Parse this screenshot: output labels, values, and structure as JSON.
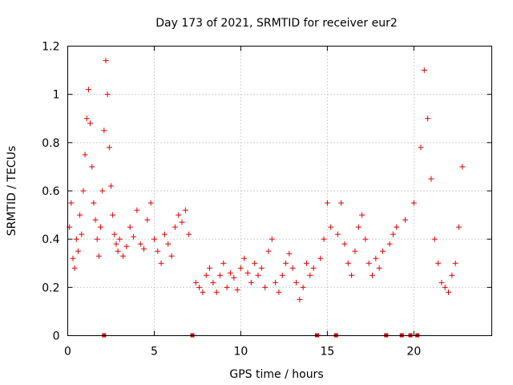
{
  "chart_data": {
    "type": "scatter",
    "title": "Day 173 of 2021, SRMTID for receiver eur2",
    "xlabel": "GPS time / hours",
    "ylabel": "SRMTID / TECUs",
    "xlim": [
      0,
      24.5
    ],
    "ylim": [
      0,
      1.2
    ],
    "x_ticks": [
      0,
      5,
      10,
      15,
      20
    ],
    "x_tick_labels": [
      "0",
      "5",
      "10",
      "15",
      "20"
    ],
    "y_ticks": [
      0,
      0.2,
      0.4,
      0.6,
      0.8,
      1.0,
      1.2
    ],
    "y_tick_labels": [
      "0",
      "0.2",
      "0.4",
      "0.6",
      "0.8",
      "1",
      "1.2"
    ],
    "grid": true,
    "marker": "plus",
    "color": "#e00000",
    "data_gap_markers_x": [
      2.1,
      7.2,
      14.4,
      15.5,
      18.4,
      19.3,
      19.8,
      20.2
    ],
    "series": [
      {
        "name": "SRMTID",
        "x": [
          0.1,
          0.2,
          0.3,
          0.4,
          0.5,
          0.6,
          0.7,
          0.8,
          0.9,
          1.0,
          1.1,
          1.2,
          1.3,
          1.4,
          1.5,
          1.6,
          1.7,
          1.8,
          1.9,
          2.0,
          2.1,
          2.2,
          2.3,
          2.4,
          2.5,
          2.6,
          2.7,
          2.8,
          2.9,
          3.0,
          3.2,
          3.4,
          3.6,
          3.8,
          4.0,
          4.2,
          4.4,
          4.6,
          4.8,
          5.0,
          5.2,
          5.4,
          5.6,
          5.8,
          6.0,
          6.2,
          6.4,
          6.6,
          6.8,
          7.0,
          7.4,
          7.6,
          7.8,
          8.0,
          8.2,
          8.4,
          8.6,
          8.8,
          9.0,
          9.2,
          9.4,
          9.6,
          9.8,
          10.0,
          10.2,
          10.4,
          10.6,
          10.8,
          11.0,
          11.2,
          11.4,
          11.6,
          11.8,
          12.0,
          12.2,
          12.4,
          12.6,
          12.8,
          13.0,
          13.2,
          13.4,
          13.6,
          13.8,
          14.0,
          14.2,
          14.6,
          14.8,
          15.0,
          15.2,
          15.6,
          15.8,
          16.0,
          16.2,
          16.4,
          16.6,
          16.8,
          17.0,
          17.2,
          17.4,
          17.6,
          17.8,
          18.0,
          18.2,
          18.6,
          18.8,
          19.0,
          19.5,
          20.0,
          20.4,
          20.6,
          20.8,
          21.0,
          21.2,
          21.4,
          21.6,
          21.8,
          22.0,
          22.2,
          22.4,
          22.6,
          22.8
        ],
        "y": [
          0.45,
          0.55,
          0.32,
          0.28,
          0.4,
          0.35,
          0.5,
          0.42,
          0.6,
          0.75,
          0.9,
          1.02,
          0.88,
          0.7,
          0.55,
          0.48,
          0.4,
          0.33,
          0.45,
          0.6,
          0.85,
          1.14,
          1.0,
          0.78,
          0.62,
          0.5,
          0.42,
          0.38,
          0.35,
          0.4,
          0.33,
          0.37,
          0.45,
          0.41,
          0.52,
          0.38,
          0.36,
          0.48,
          0.55,
          0.4,
          0.35,
          0.3,
          0.42,
          0.38,
          0.33,
          0.45,
          0.5,
          0.47,
          0.52,
          0.42,
          0.22,
          0.2,
          0.18,
          0.25,
          0.28,
          0.22,
          0.18,
          0.25,
          0.3,
          0.2,
          0.26,
          0.24,
          0.19,
          0.28,
          0.32,
          0.26,
          0.22,
          0.3,
          0.25,
          0.28,
          0.2,
          0.35,
          0.4,
          0.22,
          0.18,
          0.25,
          0.3,
          0.34,
          0.28,
          0.22,
          0.15,
          0.2,
          0.3,
          0.25,
          0.28,
          0.32,
          0.4,
          0.55,
          0.45,
          0.42,
          0.55,
          0.38,
          0.3,
          0.25,
          0.35,
          0.45,
          0.5,
          0.4,
          0.3,
          0.25,
          0.32,
          0.28,
          0.35,
          0.38,
          0.42,
          0.45,
          0.48,
          0.55,
          0.78,
          1.1,
          0.9,
          0.65,
          0.4,
          0.3,
          0.22,
          0.2,
          0.18,
          0.25,
          0.3,
          0.45,
          0.7
        ]
      }
    ]
  }
}
